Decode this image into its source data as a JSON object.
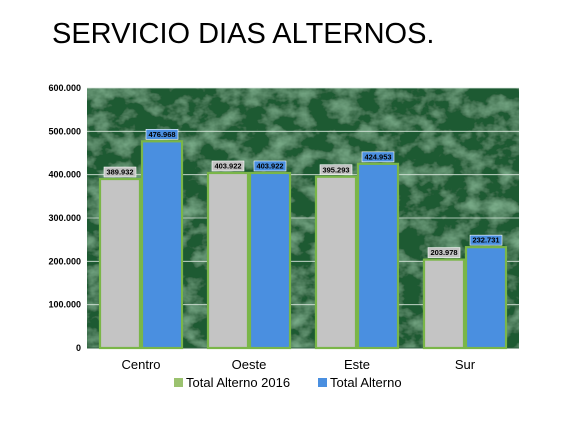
{
  "slide": {
    "title": "SERVICIO DIAS ALTERNOS."
  },
  "chart_data": {
    "type": "bar",
    "categories": [
      "Centro",
      "Oeste",
      "Este",
      "Sur"
    ],
    "series": [
      {
        "name": "Total Alterno 2016",
        "values": [
          389932,
          403922,
          395293,
          203978
        ],
        "labels": [
          "389.932",
          "403.922",
          "395.293",
          "203.978"
        ],
        "color": "#c4c4c4",
        "border": "#7ab648"
      },
      {
        "name": "Total Alterno",
        "values": [
          476968,
          403922,
          424953,
          232731
        ],
        "labels": [
          "476.968",
          "403.922",
          "424.953",
          "232.731"
        ],
        "color": "#4a8fe0",
        "border": "#7ab648"
      }
    ],
    "ylim": [
      0,
      600000
    ],
    "yticks": [
      0,
      100000,
      200000,
      300000,
      400000,
      500000,
      600000
    ],
    "ytick_labels": [
      "0",
      "100.000",
      "200.000",
      "300.000",
      "400.000",
      "500.000",
      "600.000"
    ],
    "grid": true,
    "legend_position": "bottom",
    "plot_background": "#1f5a33"
  }
}
